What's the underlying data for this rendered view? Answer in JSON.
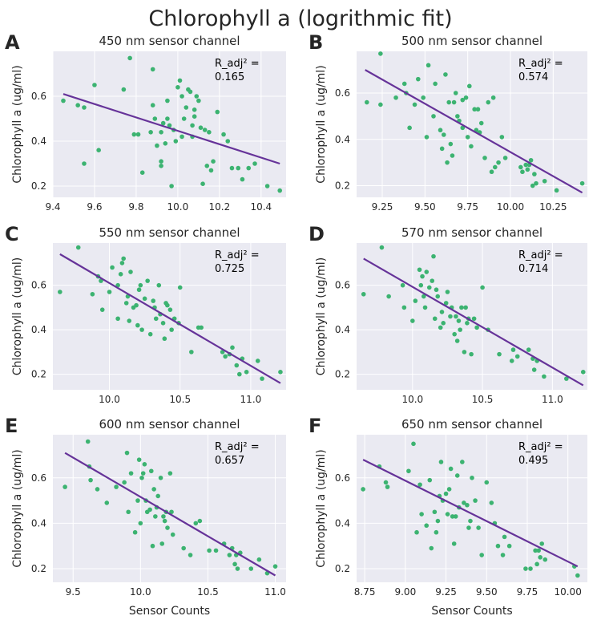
{
  "title": "Chlorophyll a  (logrithmic fit)",
  "colors": {
    "points": "#3cb371",
    "fit": "#663399",
    "panel_bg": "#eaeaf2",
    "grid": "#ffffff",
    "text": "#262626"
  },
  "chart_data": [
    {
      "letter": "A",
      "type": "scatter",
      "title": "450 nm sensor channel",
      "ylabel": "Chlorophyll a (ug/ml)",
      "xlabel": "",
      "xlim": [
        9.4,
        10.52
      ],
      "ylim": [
        0.15,
        0.8
      ],
      "xticks": [
        "9.4",
        "9.6",
        "9.8",
        "10.0",
        "10.2",
        "10.4"
      ],
      "yticks": [
        "0.2",
        "0.4",
        "0.6"
      ],
      "r2_label": "R_adj² =",
      "r2_value": "0.165",
      "fit": {
        "x": [
          9.45,
          10.49
        ],
        "y": [
          0.61,
          0.3
        ]
      },
      "points": {
        "x": [
          9.45,
          9.52,
          9.55,
          9.55,
          9.6,
          9.62,
          9.74,
          9.77,
          9.79,
          9.81,
          9.83,
          9.87,
          9.88,
          9.88,
          9.89,
          9.9,
          9.92,
          9.92,
          9.92,
          9.93,
          9.94,
          9.95,
          9.95,
          9.96,
          9.97,
          9.98,
          9.99,
          10.0,
          10.01,
          10.02,
          10.02,
          10.03,
          10.04,
          10.05,
          10.06,
          10.07,
          10.07,
          10.08,
          10.08,
          10.09,
          10.1,
          10.11,
          10.12,
          10.13,
          10.14,
          10.15,
          10.16,
          10.17,
          10.19,
          10.22,
          10.24,
          10.26,
          10.29,
          10.31,
          10.34,
          10.37,
          10.43,
          10.49
        ],
        "y": [
          0.58,
          0.56,
          0.55,
          0.3,
          0.65,
          0.36,
          0.63,
          0.77,
          0.43,
          0.43,
          0.26,
          0.44,
          0.56,
          0.72,
          0.5,
          0.38,
          0.44,
          0.31,
          0.29,
          0.48,
          0.39,
          0.5,
          0.58,
          0.47,
          0.2,
          0.45,
          0.4,
          0.64,
          0.67,
          0.42,
          0.6,
          0.5,
          0.55,
          0.63,
          0.62,
          0.47,
          0.42,
          0.51,
          0.54,
          0.6,
          0.58,
          0.46,
          0.21,
          0.45,
          0.29,
          0.44,
          0.27,
          0.31,
          0.53,
          0.43,
          0.4,
          0.28,
          0.28,
          0.23,
          0.28,
          0.3,
          0.2,
          0.18
        ]
      }
    },
    {
      "letter": "B",
      "type": "scatter",
      "title": "500 nm sensor channel",
      "ylabel": "Chlorophyll a (ug/ml)",
      "xlabel": "",
      "xlim": [
        9.1,
        10.45
      ],
      "ylim": [
        0.15,
        0.78
      ],
      "xticks": [
        "9.25",
        "9.50",
        "9.75",
        "10.00",
        "10.25"
      ],
      "yticks": [
        "0.2",
        "0.4",
        "0.6"
      ],
      "r2_label": "R_adj² =",
      "r2_value": "0.574",
      "fit": {
        "x": [
          9.15,
          10.42
        ],
        "y": [
          0.7,
          0.17
        ]
      },
      "points": {
        "x": [
          9.16,
          9.24,
          9.24,
          9.33,
          9.38,
          9.39,
          9.41,
          9.44,
          9.46,
          9.49,
          9.51,
          9.52,
          9.55,
          9.56,
          9.59,
          9.6,
          9.61,
          9.62,
          9.63,
          9.64,
          9.65,
          9.66,
          9.67,
          9.68,
          9.69,
          9.7,
          9.72,
          9.72,
          9.74,
          9.75,
          9.76,
          9.77,
          9.79,
          9.8,
          9.81,
          9.82,
          9.83,
          9.85,
          9.87,
          9.89,
          9.9,
          9.91,
          9.93,
          9.95,
          9.97,
          10.06,
          10.07,
          10.09,
          10.1,
          10.11,
          10.12,
          10.13,
          10.14,
          10.15,
          10.2,
          10.27,
          10.42
        ],
        "y": [
          0.56,
          0.55,
          0.77,
          0.58,
          0.64,
          0.6,
          0.45,
          0.55,
          0.66,
          0.58,
          0.41,
          0.72,
          0.5,
          0.64,
          0.44,
          0.36,
          0.42,
          0.68,
          0.3,
          0.56,
          0.38,
          0.33,
          0.56,
          0.6,
          0.5,
          0.48,
          0.45,
          0.57,
          0.58,
          0.41,
          0.63,
          0.37,
          0.53,
          0.44,
          0.53,
          0.43,
          0.47,
          0.32,
          0.56,
          0.26,
          0.58,
          0.28,
          0.3,
          0.41,
          0.32,
          0.28,
          0.26,
          0.29,
          0.27,
          0.29,
          0.31,
          0.2,
          0.25,
          0.21,
          0.22,
          0.18,
          0.21
        ]
      }
    },
    {
      "letter": "C",
      "type": "scatter",
      "title": "550 nm sensor channel",
      "ylabel": "Chlorophyll a (ug/ml)",
      "xlabel": "",
      "xlim": [
        9.6,
        11.25
      ],
      "ylim": [
        0.13,
        0.79
      ],
      "xticks": [
        "10.0",
        "10.5",
        "11.0"
      ],
      "yticks": [
        "0.2",
        "0.4",
        "0.6"
      ],
      "r2_label": "R_adj² =",
      "r2_value": "0.725",
      "fit": {
        "x": [
          9.65,
          11.21
        ],
        "y": [
          0.74,
          0.16
        ]
      },
      "points": {
        "x": [
          9.65,
          9.78,
          9.88,
          9.92,
          9.94,
          9.95,
          10.0,
          10.02,
          10.06,
          10.06,
          10.08,
          10.09,
          10.1,
          10.12,
          10.13,
          10.14,
          10.15,
          10.17,
          10.19,
          10.2,
          10.21,
          10.22,
          10.23,
          10.25,
          10.27,
          10.29,
          10.31,
          10.32,
          10.33,
          10.35,
          10.36,
          10.38,
          10.39,
          10.4,
          10.41,
          10.43,
          10.44,
          10.46,
          10.49,
          10.5,
          10.58,
          10.63,
          10.65,
          10.8,
          10.82,
          10.85,
          10.87,
          10.9,
          10.92,
          10.94,
          10.97,
          11.05,
          11.08,
          11.21
        ],
        "y": [
          0.57,
          0.77,
          0.56,
          0.64,
          0.62,
          0.49,
          0.57,
          0.68,
          0.45,
          0.6,
          0.65,
          0.7,
          0.72,
          0.52,
          0.55,
          0.44,
          0.66,
          0.5,
          0.51,
          0.42,
          0.58,
          0.6,
          0.4,
          0.54,
          0.62,
          0.38,
          0.53,
          0.5,
          0.45,
          0.6,
          0.47,
          0.43,
          0.36,
          0.52,
          0.51,
          0.49,
          0.4,
          0.45,
          0.43,
          0.59,
          0.3,
          0.41,
          0.41,
          0.3,
          0.28,
          0.29,
          0.32,
          0.24,
          0.2,
          0.27,
          0.21,
          0.26,
          0.18,
          0.21
        ]
      }
    },
    {
      "letter": "D",
      "type": "scatter",
      "title": "570 nm sensor channel",
      "ylabel": "Chlorophyll a (ug/ml)",
      "xlabel": "",
      "xlim": [
        9.6,
        11.25
      ],
      "ylim": [
        0.13,
        0.79
      ],
      "xticks": [
        "10.0",
        "10.5",
        "11.0"
      ],
      "yticks": [
        "0.2",
        "0.4",
        "0.6"
      ],
      "r2_label": "R_adj² =",
      "r2_value": "0.714",
      "fit": {
        "x": [
          9.65,
          11.22
        ],
        "y": [
          0.72,
          0.15
        ]
      },
      "points": {
        "x": [
          9.65,
          9.78,
          9.83,
          9.93,
          9.94,
          10.0,
          10.02,
          10.05,
          10.06,
          10.07,
          10.08,
          10.09,
          10.1,
          10.12,
          10.14,
          10.15,
          10.16,
          10.17,
          10.18,
          10.2,
          10.21,
          10.22,
          10.24,
          10.25,
          10.27,
          10.28,
          10.3,
          10.31,
          10.32,
          10.33,
          10.34,
          10.35,
          10.37,
          10.38,
          10.39,
          10.4,
          10.42,
          10.44,
          10.46,
          10.5,
          10.54,
          10.62,
          10.71,
          10.72,
          10.75,
          10.83,
          10.86,
          10.87,
          10.89,
          10.94,
          11.1,
          11.22
        ],
        "y": [
          0.56,
          0.77,
          0.55,
          0.6,
          0.5,
          0.44,
          0.53,
          0.67,
          0.6,
          0.64,
          0.55,
          0.5,
          0.66,
          0.59,
          0.62,
          0.73,
          0.45,
          0.58,
          0.55,
          0.41,
          0.48,
          0.43,
          0.52,
          0.57,
          0.46,
          0.5,
          0.38,
          0.46,
          0.35,
          0.44,
          0.4,
          0.5,
          0.3,
          0.5,
          0.43,
          0.45,
          0.29,
          0.45,
          0.41,
          0.59,
          0.4,
          0.29,
          0.26,
          0.31,
          0.28,
          0.31,
          0.27,
          0.22,
          0.26,
          0.19,
          0.18,
          0.21
        ]
      }
    },
    {
      "letter": "E",
      "type": "scatter",
      "title": "600 nm sensor channel",
      "ylabel": "Chlorophyll a (ug/ml)",
      "xlabel": "Sensor Counts",
      "xlim": [
        9.35,
        11.08
      ],
      "ylim": [
        0.14,
        0.79
      ],
      "xticks": [
        "9.5",
        "10.0",
        "10.5",
        "11.0"
      ],
      "yticks": [
        "0.2",
        "0.4",
        "0.6"
      ],
      "r2_label": "R_adj² =",
      "r2_value": "0.657",
      "fit": {
        "x": [
          9.44,
          11.0
        ],
        "y": [
          0.71,
          0.17
        ]
      },
      "points": {
        "x": [
          9.44,
          9.61,
          9.62,
          9.63,
          9.68,
          9.75,
          9.82,
          9.88,
          9.9,
          9.91,
          9.93,
          9.96,
          9.98,
          9.99,
          10.0,
          10.01,
          10.02,
          10.03,
          10.04,
          10.05,
          10.07,
          10.08,
          10.09,
          10.1,
          10.11,
          10.12,
          10.13,
          10.15,
          10.16,
          10.17,
          10.18,
          10.19,
          10.2,
          10.22,
          10.23,
          10.24,
          10.32,
          10.37,
          10.41,
          10.44,
          10.51,
          10.56,
          10.62,
          10.66,
          10.68,
          10.7,
          10.71,
          10.72,
          10.74,
          10.82,
          10.88,
          10.94,
          11.0
        ],
        "y": [
          0.56,
          0.76,
          0.65,
          0.59,
          0.55,
          0.49,
          0.56,
          0.58,
          0.71,
          0.45,
          0.62,
          0.36,
          0.5,
          0.68,
          0.4,
          0.6,
          0.62,
          0.66,
          0.5,
          0.45,
          0.46,
          0.63,
          0.3,
          0.55,
          0.43,
          0.47,
          0.52,
          0.6,
          0.31,
          0.43,
          0.41,
          0.45,
          0.38,
          0.62,
          0.45,
          0.35,
          0.29,
          0.26,
          0.4,
          0.41,
          0.28,
          0.28,
          0.31,
          0.26,
          0.29,
          0.22,
          0.26,
          0.2,
          0.27,
          0.2,
          0.24,
          0.18,
          0.21
        ]
      }
    },
    {
      "letter": "F",
      "type": "scatter",
      "title": "650 nm sensor channel",
      "ylabel": "Chlorophyll a (ug/ml)",
      "xlabel": "Sensor Counts",
      "xlim": [
        8.7,
        10.12
      ],
      "ylim": [
        0.14,
        0.79
      ],
      "xticks": [
        "8.75",
        "9.00",
        "9.25",
        "9.50",
        "9.75",
        "10.00"
      ],
      "yticks": [
        "0.2",
        "0.4",
        "0.6"
      ],
      "r2_label": "R_adj² =",
      "r2_value": "0.495",
      "fit": {
        "x": [
          8.74,
          10.06
        ],
        "y": [
          0.68,
          0.21
        ]
      },
      "points": {
        "x": [
          8.74,
          8.84,
          8.88,
          8.89,
          9.02,
          9.05,
          9.07,
          9.09,
          9.1,
          9.13,
          9.15,
          9.16,
          9.18,
          9.19,
          9.2,
          9.21,
          9.22,
          9.23,
          9.25,
          9.26,
          9.27,
          9.28,
          9.29,
          9.3,
          9.31,
          9.32,
          9.33,
          9.35,
          9.36,
          9.38,
          9.39,
          9.4,
          9.41,
          9.43,
          9.45,
          9.47,
          9.5,
          9.53,
          9.55,
          9.57,
          9.6,
          9.61,
          9.64,
          9.74,
          9.77,
          9.8,
          9.81,
          9.82,
          9.83,
          9.84,
          9.86,
          10.04,
          10.06
        ],
        "y": [
          0.55,
          0.65,
          0.58,
          0.56,
          0.63,
          0.75,
          0.36,
          0.57,
          0.44,
          0.39,
          0.59,
          0.29,
          0.45,
          0.36,
          0.41,
          0.52,
          0.67,
          0.5,
          0.53,
          0.44,
          0.55,
          0.64,
          0.43,
          0.31,
          0.43,
          0.61,
          0.47,
          0.67,
          0.49,
          0.48,
          0.38,
          0.41,
          0.6,
          0.5,
          0.38,
          0.26,
          0.58,
          0.49,
          0.4,
          0.3,
          0.26,
          0.34,
          0.3,
          0.2,
          0.2,
          0.28,
          0.22,
          0.28,
          0.25,
          0.31,
          0.24,
          0.21,
          0.17
        ]
      }
    }
  ]
}
